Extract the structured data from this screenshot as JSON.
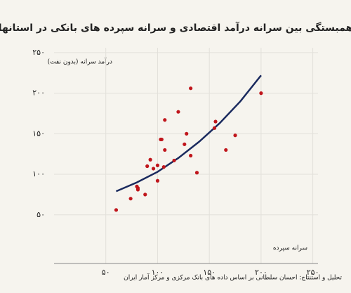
{
  "chart_data": {
    "type": "scatter",
    "title": "همبستگی بین سرانه درآمد اقتصادی و سرانه سپرده های بانکی در استانها",
    "y_label": "درآمد سرانه (بدون نفت)",
    "x_label": "سرانه سپرده",
    "source": "تحلیل و استنتاج: احسان سلطانی بر اساس داده های بانک مرکزی و مرکز آمار ایران",
    "xlim": [
      0,
      255
    ],
    "ylim": [
      -10,
      256
    ],
    "xticks": [
      {
        "value": 50,
        "label": "۵۰"
      },
      {
        "value": 100,
        "label": "۱۰۰"
      },
      {
        "value": 150,
        "label": "۱۵۰"
      },
      {
        "value": 200,
        "label": "۲۰۰"
      },
      {
        "value": 250,
        "label": "۲۵۰"
      }
    ],
    "yticks": [
      {
        "value": 50,
        "label": "۵۰"
      },
      {
        "value": 100,
        "label": "۱۰۰"
      },
      {
        "value": 150,
        "label": "۱۵۰"
      },
      {
        "value": 200,
        "label": "۲۰۰"
      },
      {
        "value": 250,
        "label": "۲۵۰"
      }
    ],
    "grid": true,
    "points": {
      "color": "#c0161c",
      "x": [
        60,
        74,
        80,
        81,
        81,
        88,
        90,
        93,
        96,
        100,
        100,
        103,
        104,
        107,
        106,
        107,
        116,
        120,
        126,
        128,
        132,
        132,
        138,
        155,
        156,
        166,
        175,
        200
      ],
      "y": [
        56,
        70,
        85,
        83,
        81,
        75,
        110,
        118,
        107,
        92,
        111,
        143,
        143,
        130,
        109,
        167,
        117,
        177,
        137,
        150,
        206,
        123,
        102,
        157,
        165,
        130,
        148,
        200
      ]
    },
    "fit": {
      "color": "#1a2a5e",
      "x": [
        60,
        80,
        100,
        120,
        140,
        160,
        180,
        200
      ],
      "y": [
        79,
        90,
        103,
        120,
        140,
        163,
        190,
        222
      ]
    }
  }
}
